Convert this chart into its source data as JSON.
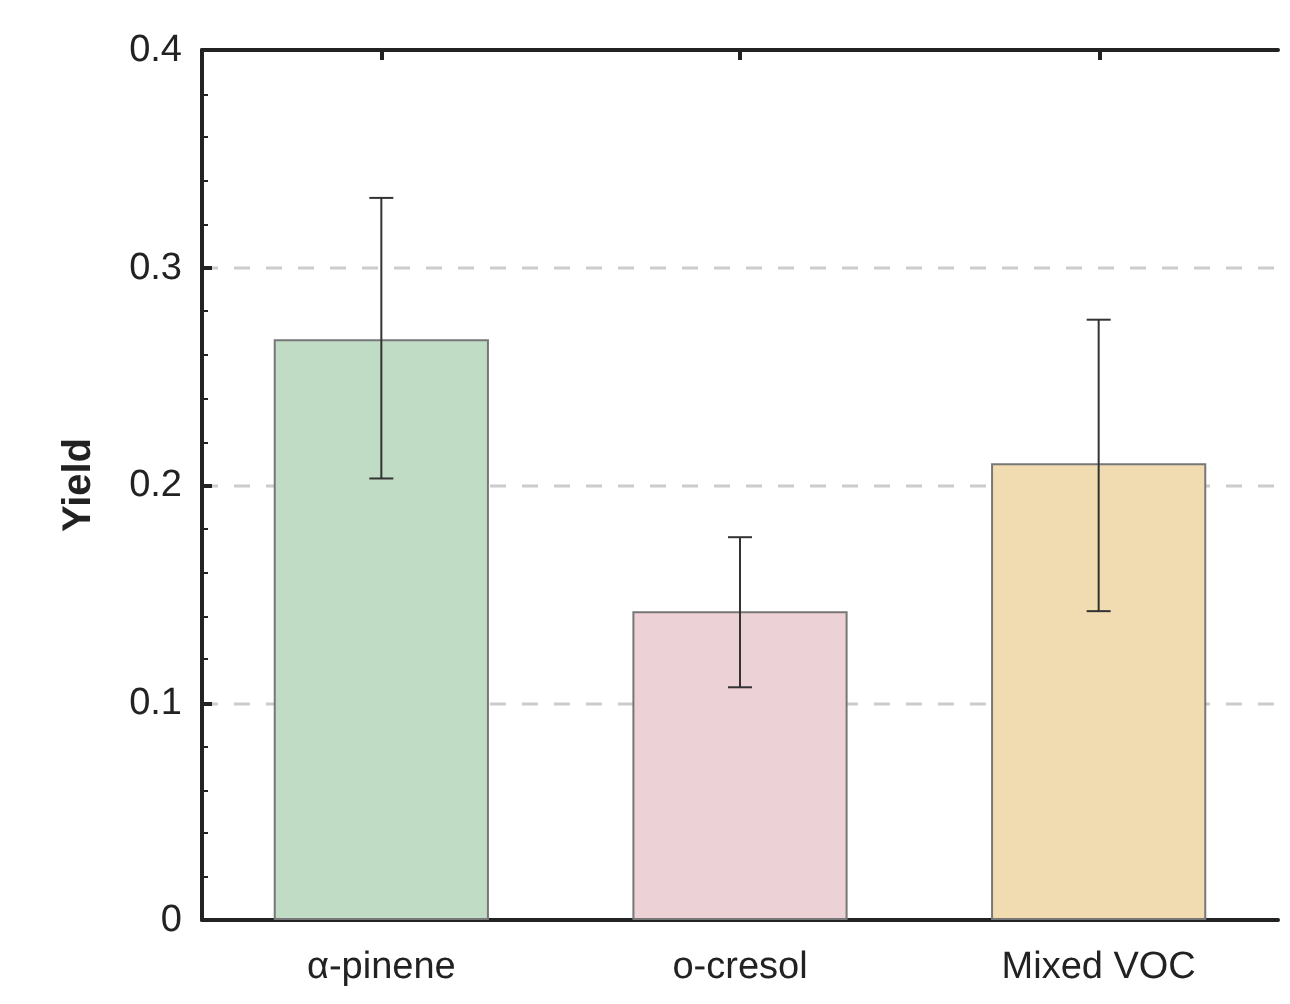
{
  "chart_data": {
    "type": "bar",
    "ylabel": "Yield",
    "categories": [
      "α-pinene",
      "o-cresol",
      "Mixed VOC"
    ],
    "values": [
      0.267,
      0.142,
      0.21
    ],
    "colors": [
      "#c1dcc4",
      "#ecd1d6",
      "#f1dbb1"
    ],
    "errors": [
      [
        0.203,
        0.332
      ],
      [
        0.107,
        0.176
      ],
      [
        0.142,
        0.276
      ]
    ],
    "ylim": [
      0,
      0.4
    ],
    "yticks": [
      0,
      0.1,
      0.2,
      0.3,
      0.4
    ],
    "grid": "y"
  }
}
